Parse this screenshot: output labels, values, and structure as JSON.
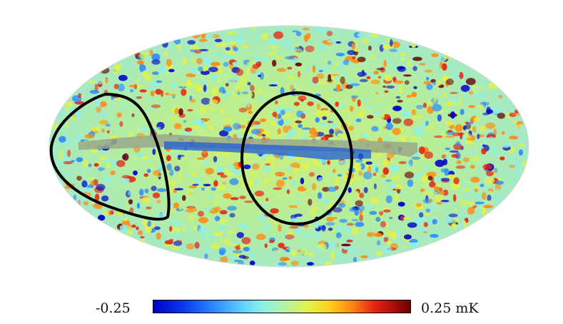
{
  "figure": {
    "type": "mollweide-sky-map",
    "colormap": [
      "#0000c8",
      "#2f8cff",
      "#8ff0e6",
      "#e2f24a",
      "#ff8a14",
      "#e62412",
      "#6a0000"
    ],
    "outline_color": "#000000",
    "galactic_mask_color": "#9aa888"
  },
  "colorbar": {
    "min_label": "-0.25",
    "max_label": "0.25 mK",
    "min_value": -0.25,
    "max_value": 0.25
  }
}
